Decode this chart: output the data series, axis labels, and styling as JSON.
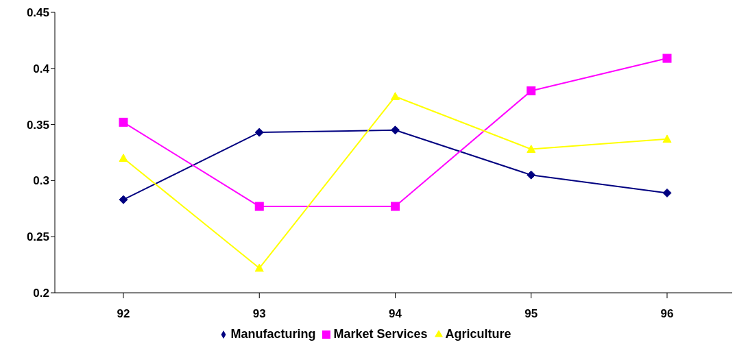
{
  "chart_data": {
    "type": "line",
    "categories": [
      "92",
      "93",
      "94",
      "95",
      "96"
    ],
    "series": [
      {
        "name": "Manufacturing",
        "color": "#000080",
        "marker": "diamond",
        "values": [
          0.283,
          0.343,
          0.345,
          0.305,
          0.289
        ]
      },
      {
        "name": "Market Services",
        "color": "#ff00ff",
        "marker": "square",
        "values": [
          0.352,
          0.277,
          0.277,
          0.38,
          0.409
        ]
      },
      {
        "name": "Agriculture",
        "color": "#ffff00",
        "marker": "triangle",
        "values": [
          0.32,
          0.222,
          0.375,
          0.328,
          0.337
        ]
      }
    ],
    "ylim": [
      0.2,
      0.45
    ],
    "yticks": [
      0.2,
      0.25,
      0.3,
      0.35,
      0.4,
      0.45
    ],
    "grid": false,
    "legend": "bottom",
    "line_style": "solid"
  }
}
